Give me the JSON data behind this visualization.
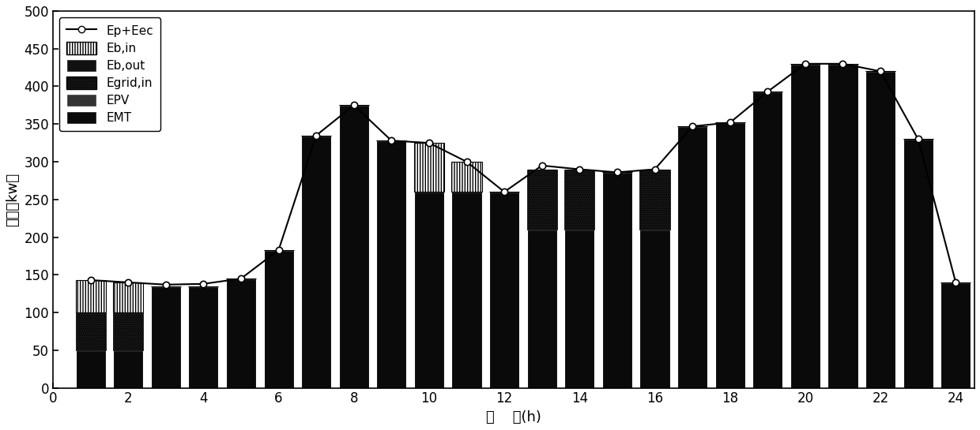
{
  "hours": [
    1,
    2,
    3,
    4,
    5,
    6,
    7,
    8,
    9,
    10,
    11,
    12,
    13,
    14,
    15,
    16,
    17,
    18,
    19,
    20,
    21,
    22,
    23,
    24
  ],
  "line_values": [
    143,
    140,
    137,
    138,
    145,
    183,
    335,
    375,
    328,
    325,
    300,
    260,
    295,
    290,
    286,
    290,
    347,
    352,
    393,
    430,
    430,
    420,
    330,
    140
  ],
  "EMT": [
    50,
    50,
    135,
    135,
    145,
    183,
    335,
    375,
    328,
    260,
    260,
    260,
    210,
    210,
    286,
    210,
    347,
    352,
    393,
    430,
    430,
    420,
    330,
    140
  ],
  "EPV": [
    0,
    0,
    0,
    0,
    0,
    0,
    0,
    0,
    0,
    0,
    0,
    0,
    0,
    0,
    0,
    0,
    0,
    0,
    0,
    0,
    0,
    0,
    0,
    0
  ],
  "Egrid_in": [
    50,
    50,
    0,
    0,
    0,
    0,
    0,
    0,
    0,
    0,
    0,
    0,
    80,
    80,
    0,
    80,
    0,
    0,
    0,
    0,
    0,
    0,
    0,
    0
  ],
  "Eb_out": [
    0,
    0,
    0,
    0,
    0,
    0,
    0,
    0,
    0,
    0,
    0,
    0,
    0,
    0,
    0,
    0,
    0,
    0,
    0,
    0,
    0,
    0,
    0,
    0
  ],
  "Eb_in": [
    43,
    40,
    0,
    0,
    0,
    0,
    0,
    0,
    0,
    65,
    40,
    0,
    0,
    0,
    0,
    0,
    0,
    0,
    0,
    0,
    0,
    0,
    0,
    0
  ],
  "title": "",
  "xlabel": "时    间(h)",
  "ylabel": "功率（kw）",
  "ylim": [
    0,
    500
  ],
  "xlim": [
    0,
    24.5
  ],
  "xticks": [
    0,
    2,
    4,
    6,
    8,
    10,
    12,
    14,
    16,
    18,
    20,
    22,
    24
  ],
  "yticks": [
    0,
    50,
    100,
    150,
    200,
    250,
    300,
    350,
    400,
    450,
    500
  ],
  "background_color": "#ffffff",
  "figsize": [
    12.4,
    5.45
  ],
  "dpi": 100
}
